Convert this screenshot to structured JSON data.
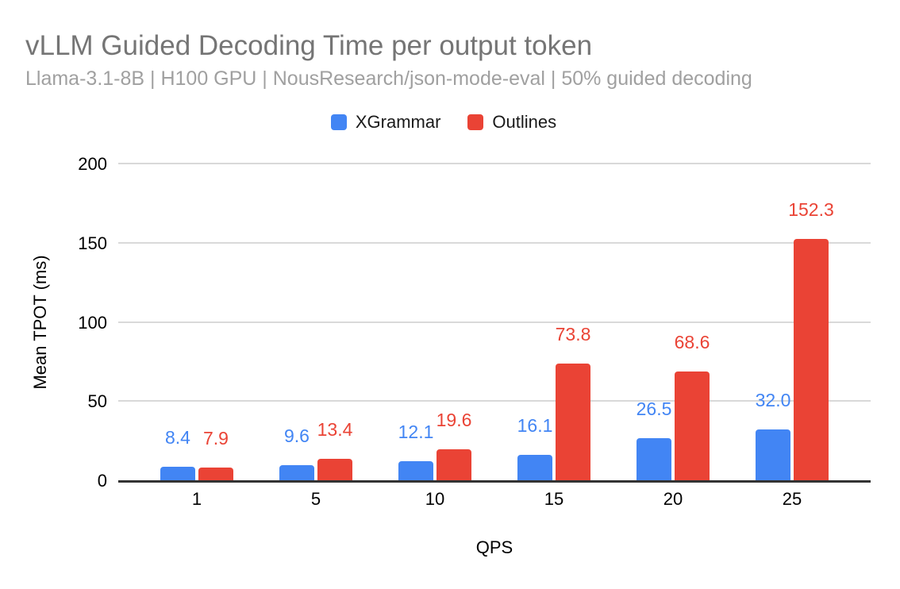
{
  "header": {
    "title": "vLLM Guided Decoding Time per output token",
    "subtitle": "Llama-3.1-8B | H100 GPU | NousResearch/json-mode-eval | 50% guided decoding"
  },
  "chart_data": {
    "type": "bar",
    "title": "vLLM Guided Decoding Time per output token",
    "subtitle": "Llama-3.1-8B | H100 GPU | NousResearch/json-mode-eval | 50% guided decoding",
    "categories": [
      "1",
      "5",
      "10",
      "15",
      "20",
      "25"
    ],
    "series": [
      {
        "name": "XGrammar",
        "color": "#4285F4",
        "values": [
          8.4,
          9.6,
          12.1,
          16.1,
          26.5,
          32.0
        ]
      },
      {
        "name": "Outlines",
        "color": "#EA4335",
        "values": [
          7.9,
          13.4,
          19.6,
          73.8,
          68.6,
          152.3
        ]
      }
    ],
    "xlabel": "QPS",
    "ylabel": "Mean TPOT (ms)",
    "ylim": [
      0,
      200
    ],
    "yticks": [
      0,
      50,
      100,
      150,
      200
    ],
    "grid": true,
    "legend_position": "top",
    "data_labels": true,
    "colors": {
      "title_text": "#757575",
      "subtitle_text": "#a0a0a0",
      "axis_text": "#000000",
      "gridline": "#d9d9d9",
      "axis_line": "#333333"
    }
  }
}
